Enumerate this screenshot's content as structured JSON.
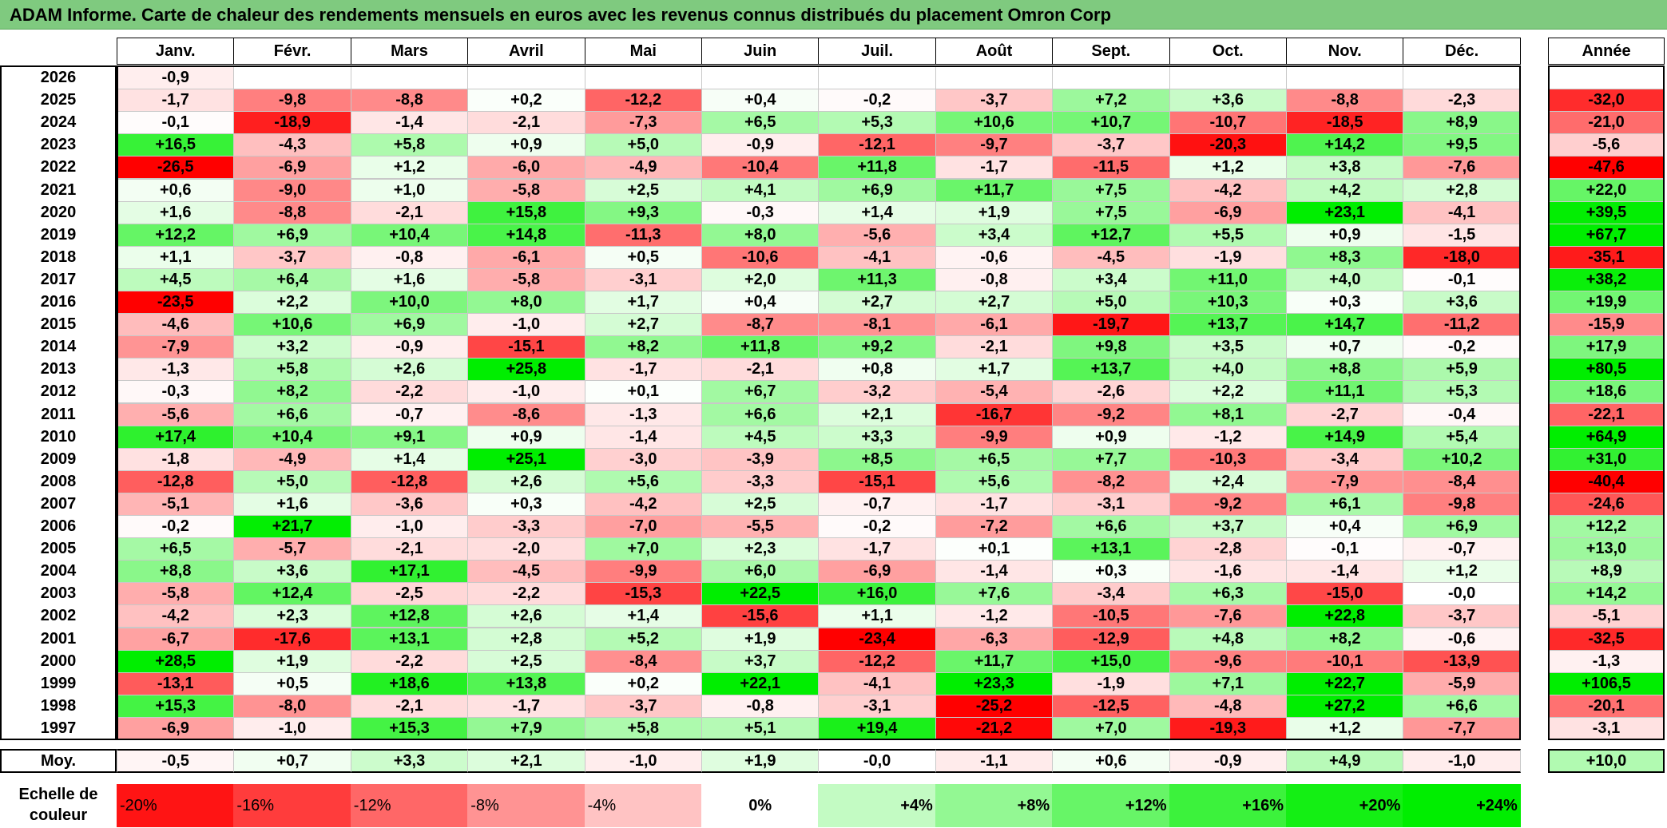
{
  "title": "ADAM Informe. Carte de chaleur des rendements mensuels en euros avec les revenus connus distribués du placement Omron Corp",
  "colors": {
    "title_bar": "#7fca7f",
    "negative": "#ff0000",
    "positive": "#00ee00",
    "neutral": "#ffffff"
  },
  "chart_data": {
    "type": "heatmap",
    "title": "ADAM Informe. Carte de chaleur des rendements mensuels en euros avec les revenus connus distribués du placement Omron Corp",
    "months": [
      "Janv.",
      "Févr.",
      "Mars",
      "Avril",
      "Mai",
      "Juin",
      "Juil.",
      "Août",
      "Sept.",
      "Oct.",
      "Nov.",
      "Déc."
    ],
    "year_header": "Année",
    "rows": [
      {
        "year": "2026",
        "values": [
          "-0,9",
          "",
          "",
          "",
          "",
          "",
          "",
          "",
          "",
          "",
          "",
          ""
        ],
        "annual": ""
      },
      {
        "year": "2025",
        "values": [
          "-1,7",
          "-9,8",
          "-8,8",
          "+0,2",
          "-12,2",
          "+0,4",
          "-0,2",
          "-3,7",
          "+7,2",
          "+3,6",
          "-8,8",
          "-2,3"
        ],
        "annual": "-32,0"
      },
      {
        "year": "2024",
        "values": [
          "-0,1",
          "-18,9",
          "-1,4",
          "-2,1",
          "-7,3",
          "+6,5",
          "+5,3",
          "+10,6",
          "+10,7",
          "-10,7",
          "-18,5",
          "+8,9"
        ],
        "annual": "-21,0"
      },
      {
        "year": "2023",
        "values": [
          "+16,5",
          "-4,3",
          "+5,8",
          "+0,9",
          "+5,0",
          "-0,9",
          "-12,1",
          "-9,7",
          "-3,7",
          "-20,3",
          "+14,2",
          "+9,5"
        ],
        "annual": "-5,6"
      },
      {
        "year": "2022",
        "values": [
          "-26,5",
          "-6,9",
          "+1,2",
          "-6,0",
          "-4,9",
          "-10,4",
          "+11,8",
          "-1,7",
          "-11,5",
          "+1,2",
          "+3,8",
          "-7,6"
        ],
        "annual": "-47,6"
      },
      {
        "year": "2021",
        "values": [
          "+0,6",
          "-9,0",
          "+1,0",
          "-5,8",
          "+2,5",
          "+4,1",
          "+6,9",
          "+11,7",
          "+7,5",
          "-4,2",
          "+4,2",
          "+2,8"
        ],
        "annual": "+22,0"
      },
      {
        "year": "2020",
        "values": [
          "+1,6",
          "-8,8",
          "-2,1",
          "+15,8",
          "+9,3",
          "-0,3",
          "+1,4",
          "+1,9",
          "+7,5",
          "-6,9",
          "+23,1",
          "-4,1"
        ],
        "annual": "+39,5"
      },
      {
        "year": "2019",
        "values": [
          "+12,2",
          "+6,9",
          "+10,4",
          "+14,8",
          "-11,3",
          "+8,0",
          "-5,6",
          "+3,4",
          "+12,7",
          "+5,5",
          "+0,9",
          "-1,5"
        ],
        "annual": "+67,7"
      },
      {
        "year": "2018",
        "values": [
          "+1,1",
          "-3,7",
          "-0,8",
          "-6,1",
          "+0,5",
          "-10,6",
          "-4,1",
          "-0,6",
          "-4,5",
          "-1,9",
          "+8,3",
          "-18,0"
        ],
        "annual": "-35,1"
      },
      {
        "year": "2017",
        "values": [
          "+4,5",
          "+6,4",
          "+1,6",
          "-5,8",
          "-3,1",
          "+2,0",
          "+11,3",
          "-0,8",
          "+3,4",
          "+11,0",
          "+4,0",
          "-0,1"
        ],
        "annual": "+38,2"
      },
      {
        "year": "2016",
        "values": [
          "-23,5",
          "+2,2",
          "+10,0",
          "+8,0",
          "+1,7",
          "+0,4",
          "+2,7",
          "+2,7",
          "+5,0",
          "+10,3",
          "+0,3",
          "+3,6"
        ],
        "annual": "+19,9"
      },
      {
        "year": "2015",
        "values": [
          "-4,6",
          "+10,6",
          "+6,9",
          "-1,0",
          "+2,7",
          "-8,7",
          "-8,1",
          "-6,1",
          "-19,7",
          "+13,7",
          "+14,7",
          "-11,2"
        ],
        "annual": "-15,9"
      },
      {
        "year": "2014",
        "values": [
          "-7,9",
          "+3,2",
          "-0,9",
          "-15,1",
          "+8,2",
          "+11,8",
          "+9,2",
          "-2,1",
          "+9,8",
          "+3,5",
          "+0,7",
          "-0,2"
        ],
        "annual": "+17,9"
      },
      {
        "year": "2013",
        "values": [
          "-1,3",
          "+5,8",
          "+2,6",
          "+25,8",
          "-1,7",
          "-2,1",
          "+0,8",
          "+1,7",
          "+13,7",
          "+4,0",
          "+8,8",
          "+5,9"
        ],
        "annual": "+80,5"
      },
      {
        "year": "2012",
        "values": [
          "-0,3",
          "+8,2",
          "-2,2",
          "-1,0",
          "+0,1",
          "+6,7",
          "-3,2",
          "-5,4",
          "-2,6",
          "+2,2",
          "+11,1",
          "+5,3"
        ],
        "annual": "+18,6"
      },
      {
        "year": "2011",
        "values": [
          "-5,6",
          "+6,6",
          "-0,7",
          "-8,6",
          "-1,3",
          "+6,6",
          "+2,1",
          "-16,7",
          "-9,2",
          "+8,1",
          "-2,7",
          "-0,4"
        ],
        "annual": "-22,1"
      },
      {
        "year": "2010",
        "values": [
          "+17,4",
          "+10,4",
          "+9,1",
          "+0,9",
          "-1,4",
          "+4,5",
          "+3,3",
          "-9,9",
          "+0,9",
          "-1,2",
          "+14,9",
          "+5,4"
        ],
        "annual": "+64,9"
      },
      {
        "year": "2009",
        "values": [
          "-1,8",
          "-4,9",
          "+1,4",
          "+25,1",
          "-3,0",
          "-3,9",
          "+8,5",
          "+6,5",
          "+7,7",
          "-10,3",
          "-3,4",
          "+10,2"
        ],
        "annual": "+31,0"
      },
      {
        "year": "2008",
        "values": [
          "-12,8",
          "+5,0",
          "-12,8",
          "+2,6",
          "+5,6",
          "-3,3",
          "-15,1",
          "+5,6",
          "-8,2",
          "+2,4",
          "-7,9",
          "-8,4"
        ],
        "annual": "-40,4"
      },
      {
        "year": "2007",
        "values": [
          "-5,1",
          "+1,6",
          "-3,6",
          "+0,3",
          "-4,2",
          "+2,5",
          "-0,7",
          "-1,7",
          "-3,1",
          "-9,2",
          "+6,1",
          "-9,8"
        ],
        "annual": "-24,6"
      },
      {
        "year": "2006",
        "values": [
          "-0,2",
          "+21,7",
          "-1,0",
          "-3,3",
          "-7,0",
          "-5,5",
          "-0,2",
          "-7,2",
          "+6,6",
          "+3,7",
          "+0,4",
          "+6,9"
        ],
        "annual": "+12,2"
      },
      {
        "year": "2005",
        "values": [
          "+6,5",
          "-5,7",
          "-2,1",
          "-2,0",
          "+7,0",
          "+2,3",
          "-1,7",
          "+0,1",
          "+13,1",
          "-2,8",
          "-0,1",
          "-0,7"
        ],
        "annual": "+13,0"
      },
      {
        "year": "2004",
        "values": [
          "+8,8",
          "+3,6",
          "+17,1",
          "-4,5",
          "-9,9",
          "+6,0",
          "-6,9",
          "-1,4",
          "+0,3",
          "-1,6",
          "-1,4",
          "+1,2"
        ],
        "annual": "+8,9"
      },
      {
        "year": "2003",
        "values": [
          "-5,8",
          "+12,4",
          "-2,5",
          "-2,2",
          "-15,3",
          "+22,5",
          "+16,0",
          "+7,6",
          "-3,4",
          "+6,3",
          "-15,0",
          "-0,0"
        ],
        "annual": "+14,2"
      },
      {
        "year": "2002",
        "values": [
          "-4,2",
          "+2,3",
          "+12,8",
          "+2,6",
          "+1,4",
          "-15,6",
          "+1,1",
          "-1,2",
          "-10,5",
          "-7,6",
          "+22,8",
          "-3,7"
        ],
        "annual": "-5,1"
      },
      {
        "year": "2001",
        "values": [
          "-6,7",
          "-17,6",
          "+13,1",
          "+2,8",
          "+5,2",
          "+1,9",
          "-23,4",
          "-6,3",
          "-12,9",
          "+4,8",
          "+8,2",
          "-0,6"
        ],
        "annual": "-32,5"
      },
      {
        "year": "2000",
        "values": [
          "+28,5",
          "+1,9",
          "-2,2",
          "+2,5",
          "-8,4",
          "+3,7",
          "-12,2",
          "+11,7",
          "+15,0",
          "-9,6",
          "-10,1",
          "-13,9"
        ],
        "annual": "-1,3"
      },
      {
        "year": "1999",
        "values": [
          "-13,1",
          "+0,5",
          "+18,6",
          "+13,8",
          "+0,2",
          "+22,1",
          "-4,1",
          "+23,3",
          "-1,9",
          "+7,1",
          "+22,7",
          "-5,9"
        ],
        "annual": "+106,5"
      },
      {
        "year": "1998",
        "values": [
          "+15,3",
          "-8,0",
          "-2,1",
          "-1,7",
          "-3,7",
          "-0,8",
          "-3,1",
          "-25,2",
          "-12,5",
          "-4,8",
          "+27,2",
          "+6,6"
        ],
        "annual": "-20,1"
      },
      {
        "year": "1997",
        "values": [
          "-6,9",
          "-1,0",
          "+15,3",
          "+7,9",
          "+5,8",
          "+5,1",
          "+19,4",
          "-21,2",
          "+7,0",
          "-19,3",
          "+1,2",
          "-7,7"
        ],
        "annual": "-3,1"
      }
    ],
    "average": {
      "label": "Moy.",
      "values": [
        "-0,5",
        "+0,7",
        "+3,3",
        "+2,1",
        "-1,0",
        "+1,9",
        "-0,0",
        "-1,1",
        "+0,6",
        "-0,9",
        "+4,9",
        "-1,0"
      ],
      "annual": "+10,0"
    },
    "scale": {
      "label_line1": "Echelle de",
      "label_line2": "couleur",
      "items": [
        "-20%",
        "-16%",
        "-12%",
        "-8%",
        "-4%",
        "0%",
        "+4%",
        "+8%",
        "+12%",
        "+16%",
        "+20%",
        "+24%"
      ],
      "values": [
        -20,
        -16,
        -12,
        -8,
        -4,
        0,
        4,
        8,
        12,
        16,
        20,
        24
      ]
    }
  }
}
